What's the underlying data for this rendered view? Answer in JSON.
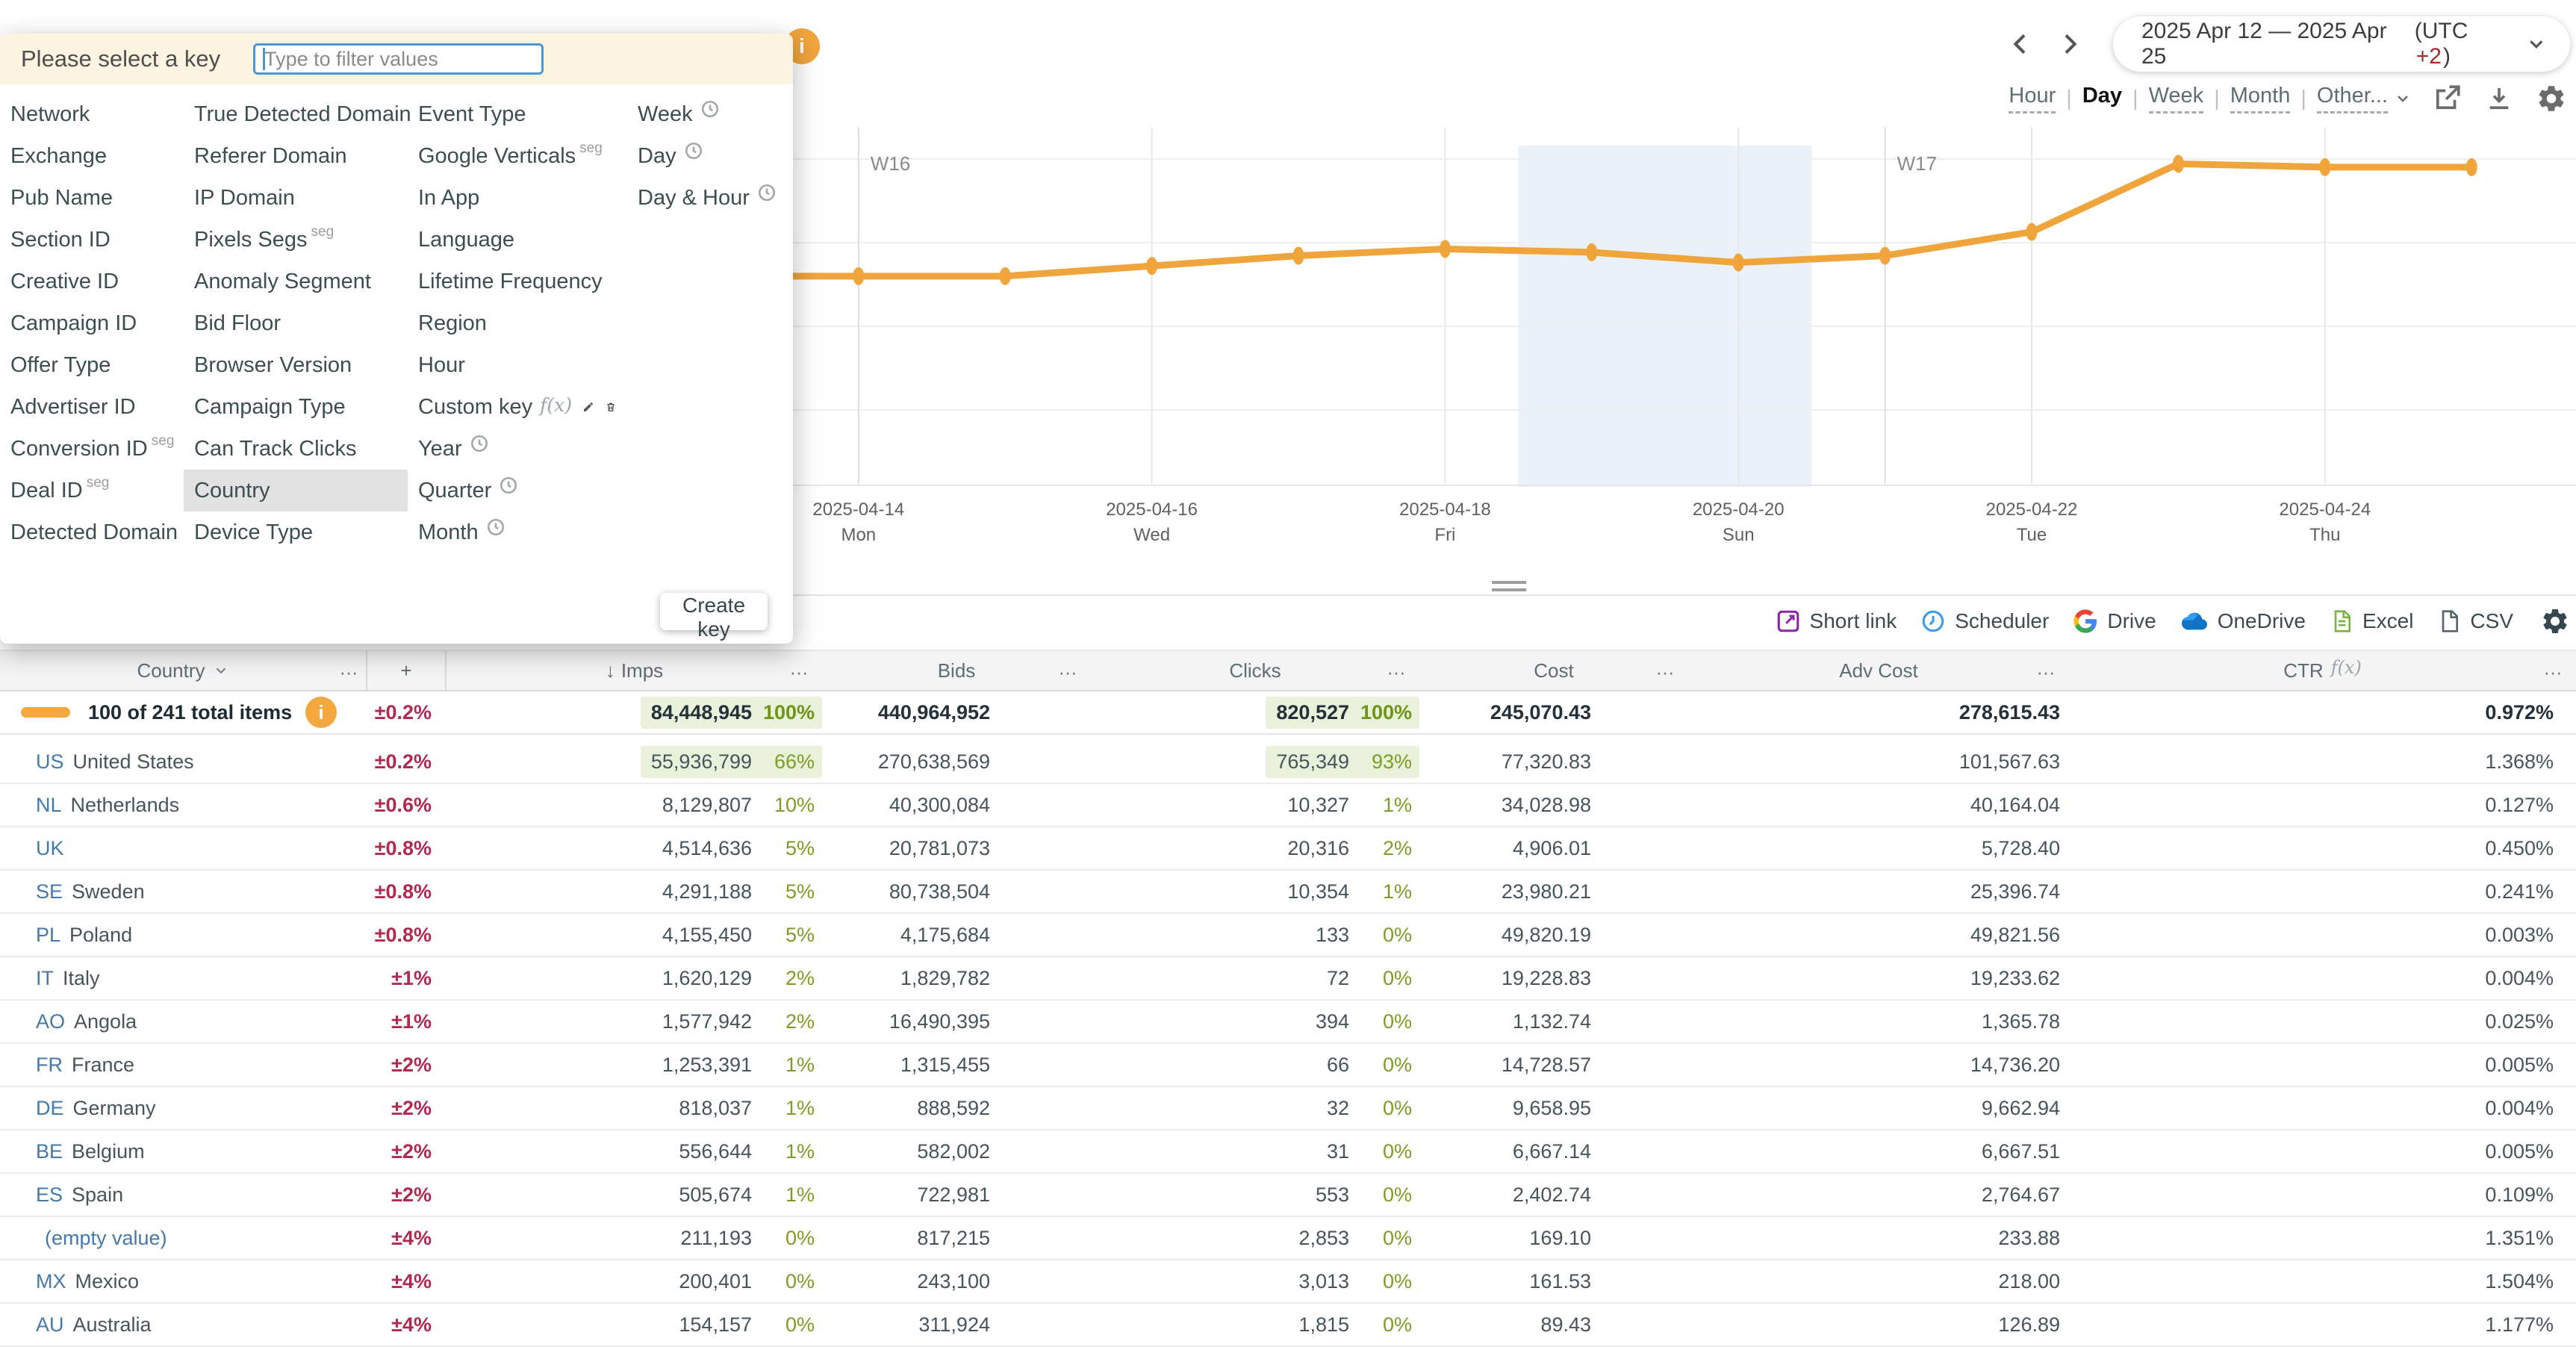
{
  "key_panel": {
    "title": "Please select a key",
    "filter_placeholder": "Type to filter values",
    "create_label": "Create key",
    "columns": [
      {
        "items": [
          {
            "label": "Network"
          },
          {
            "label": "Exchange"
          },
          {
            "label": "Pub Name"
          },
          {
            "label": "Section ID"
          },
          {
            "label": "Creative ID"
          },
          {
            "label": "Campaign ID"
          },
          {
            "label": "Offer Type"
          },
          {
            "label": "Advertiser ID"
          },
          {
            "label": "Conversion ID",
            "sup": "seg"
          },
          {
            "label": "Deal ID",
            "sup": "seg"
          },
          {
            "label": "Detected Domain"
          }
        ]
      },
      {
        "items": [
          {
            "label": "True Detected Domain"
          },
          {
            "label": "Referer Domain"
          },
          {
            "label": "IP Domain"
          },
          {
            "label": "Pixels Segs",
            "sup": "seg"
          },
          {
            "label": "Anomaly Segment"
          },
          {
            "label": "Bid Floor"
          },
          {
            "label": "Browser Version"
          },
          {
            "label": "Campaign Type"
          },
          {
            "label": "Can Track Clicks"
          },
          {
            "label": "Country",
            "selected": true
          },
          {
            "label": "Device Type"
          }
        ]
      },
      {
        "items": [
          {
            "label": "Event Type"
          },
          {
            "label": "Google Verticals",
            "sup": "seg"
          },
          {
            "label": "In App"
          },
          {
            "label": "Language"
          },
          {
            "label": "Lifetime Frequency"
          },
          {
            "label": "Region"
          },
          {
            "label": "Hour"
          },
          {
            "label": "Custom key",
            "fx": true,
            "actions": [
              "edit",
              "delete"
            ]
          },
          {
            "label": "Year",
            "clock": true
          },
          {
            "label": "Quarter",
            "clock": true
          },
          {
            "label": "Month",
            "clock": true
          }
        ]
      },
      {
        "items": [
          {
            "label": "Week",
            "clock": true
          },
          {
            "label": "Day",
            "clock": true
          },
          {
            "label": "Day & Hour",
            "clock": true
          }
        ]
      }
    ]
  },
  "topbar": {
    "date_range": "2025 Apr 12 — 2025 Apr 25",
    "utc_prefix": "(UTC",
    "utc_offset": "+2",
    "utc_suffix": ")",
    "granularity": {
      "options": [
        "Hour",
        "Day",
        "Week",
        "Month",
        "Other..."
      ],
      "active": "Day"
    },
    "icons": [
      "open-in-new",
      "download",
      "settings"
    ]
  },
  "export_bar": {
    "items": [
      {
        "label": "Short link",
        "icon": "short-link"
      },
      {
        "label": "Scheduler",
        "icon": "scheduler-clock"
      },
      {
        "label": "Drive",
        "icon": "google-drive"
      },
      {
        "label": "OneDrive",
        "icon": "onedrive-cloud"
      },
      {
        "label": "Excel",
        "icon": "excel-file"
      },
      {
        "label": "CSV",
        "icon": "csv-file"
      }
    ],
    "settings_icon": "gear"
  },
  "chart_data": {
    "type": "line",
    "title": "",
    "series": [
      {
        "name": "Imps",
        "values_relative": [
          61,
          61,
          61,
          61,
          64,
          67,
          69,
          68,
          65,
          67,
          74,
          94,
          93,
          93
        ]
      }
    ],
    "x": [
      "2025-04-12",
      "2025-04-13",
      "2025-04-14",
      "2025-04-15",
      "2025-04-16",
      "2025-04-17",
      "2025-04-18",
      "2025-04-19",
      "2025-04-20",
      "2025-04-21",
      "2025-04-22",
      "2025-04-23",
      "2025-04-24",
      "2025-04-25"
    ],
    "ticks": [
      {
        "date": "2025-04-14",
        "dow": "Mon"
      },
      {
        "date": "2025-04-16",
        "dow": "Wed"
      },
      {
        "date": "2025-04-18",
        "dow": "Fri"
      },
      {
        "date": "2025-04-20",
        "dow": "Sun"
      },
      {
        "date": "2025-04-22",
        "dow": "Tue"
      },
      {
        "date": "2025-04-24",
        "dow": "Thu"
      }
    ],
    "week_markers": [
      {
        "label": "W16",
        "date": "2025-04-14"
      },
      {
        "label": "W17",
        "date": "2025-04-21"
      }
    ],
    "weekend_band": [
      "2025-04-19",
      "2025-04-20"
    ],
    "line_color": "#f0a43c",
    "band_color": "#eaf1f8",
    "grid": true,
    "ylim": [
      0,
      100
    ],
    "xlabel": "",
    "ylabel": ""
  },
  "table": {
    "headers": {
      "country": "Country",
      "plus": "+",
      "imps": "Imps",
      "bids": "Bids",
      "clicks": "Clicks",
      "cost": "Cost",
      "adv_cost": "Adv Cost",
      "ctr": "CTR",
      "ctr_fx": "f(x)",
      "sort_arrow": "↓",
      "menu": "…"
    },
    "totals": {
      "label": "100 of 241 total items",
      "pm": "±0.2%",
      "imps": "84,448,945",
      "imps_pct": "100%",
      "bids": "440,964,952",
      "clicks": "820,527",
      "clicks_pct": "100%",
      "cost": "245,070.43",
      "adv_cost": "278,615.43",
      "ctr": "0.972%"
    },
    "rows": [
      {
        "code": "US",
        "name": "United States",
        "pm": "±0.2%",
        "imps": "55,936,799",
        "imps_pct": "66%",
        "hl_imps": true,
        "bids": "270,638,569",
        "clicks": "765,349",
        "clicks_pct": "93%",
        "hl_clicks": true,
        "cost": "77,320.83",
        "adv_cost": "101,567.63",
        "ctr": "1.368%"
      },
      {
        "code": "NL",
        "name": "Netherlands",
        "pm": "±0.6%",
        "imps": "8,129,807",
        "imps_pct": "10%",
        "bids": "40,300,084",
        "clicks": "10,327",
        "clicks_pct": "1%",
        "cost": "34,028.98",
        "adv_cost": "40,164.04",
        "ctr": "0.127%"
      },
      {
        "code": "UK",
        "name": "",
        "pm": "±0.8%",
        "imps": "4,514,636",
        "imps_pct": "5%",
        "bids": "20,781,073",
        "clicks": "20,316",
        "clicks_pct": "2%",
        "cost": "4,906.01",
        "adv_cost": "5,728.40",
        "ctr": "0.450%"
      },
      {
        "code": "SE",
        "name": "Sweden",
        "pm": "±0.8%",
        "imps": "4,291,188",
        "imps_pct": "5%",
        "bids": "80,738,504",
        "clicks": "10,354",
        "clicks_pct": "1%",
        "cost": "23,980.21",
        "adv_cost": "25,396.74",
        "ctr": "0.241%"
      },
      {
        "code": "PL",
        "name": "Poland",
        "pm": "±0.8%",
        "imps": "4,155,450",
        "imps_pct": "5%",
        "bids": "4,175,684",
        "clicks": "133",
        "clicks_pct": "0%",
        "cost": "49,820.19",
        "adv_cost": "49,821.56",
        "ctr": "0.003%"
      },
      {
        "code": "IT",
        "name": "Italy",
        "pm": "±1%",
        "imps": "1,620,129",
        "imps_pct": "2%",
        "bids": "1,829,782",
        "clicks": "72",
        "clicks_pct": "0%",
        "cost": "19,228.83",
        "adv_cost": "19,233.62",
        "ctr": "0.004%"
      },
      {
        "code": "AO",
        "name": "Angola",
        "pm": "±1%",
        "imps": "1,577,942",
        "imps_pct": "2%",
        "bids": "16,490,395",
        "clicks": "394",
        "clicks_pct": "0%",
        "cost": "1,132.74",
        "adv_cost": "1,365.78",
        "ctr": "0.025%"
      },
      {
        "code": "FR",
        "name": "France",
        "pm": "±2%",
        "imps": "1,253,391",
        "imps_pct": "1%",
        "bids": "1,315,455",
        "clicks": "66",
        "clicks_pct": "0%",
        "cost": "14,728.57",
        "adv_cost": "14,736.20",
        "ctr": "0.005%"
      },
      {
        "code": "DE",
        "name": "Germany",
        "pm": "±2%",
        "imps": "818,037",
        "imps_pct": "1%",
        "bids": "888,592",
        "clicks": "32",
        "clicks_pct": "0%",
        "cost": "9,658.95",
        "adv_cost": "9,662.94",
        "ctr": "0.004%"
      },
      {
        "code": "BE",
        "name": "Belgium",
        "pm": "±2%",
        "imps": "556,644",
        "imps_pct": "1%",
        "bids": "582,002",
        "clicks": "31",
        "clicks_pct": "0%",
        "cost": "6,667.14",
        "adv_cost": "6,667.51",
        "ctr": "0.005%"
      },
      {
        "code": "ES",
        "name": "Spain",
        "pm": "±2%",
        "imps": "505,674",
        "imps_pct": "1%",
        "bids": "722,981",
        "clicks": "553",
        "clicks_pct": "0%",
        "cost": "2,402.74",
        "adv_cost": "2,764.67",
        "ctr": "0.109%"
      },
      {
        "code": "",
        "name": "(empty value)",
        "empty": true,
        "pm": "±4%",
        "imps": "211,193",
        "imps_pct": "0%",
        "bids": "817,215",
        "clicks": "2,853",
        "clicks_pct": "0%",
        "cost": "169.10",
        "adv_cost": "233.88",
        "ctr": "1.351%"
      },
      {
        "code": "MX",
        "name": "Mexico",
        "pm": "±4%",
        "imps": "200,401",
        "imps_pct": "0%",
        "bids": "243,100",
        "clicks": "3,013",
        "clicks_pct": "0%",
        "cost": "161.53",
        "adv_cost": "218.00",
        "ctr": "1.504%"
      },
      {
        "code": "AU",
        "name": "Australia",
        "pm": "±4%",
        "imps": "154,157",
        "imps_pct": "0%",
        "bids": "311,924",
        "clicks": "1,815",
        "clicks_pct": "0%",
        "cost": "89.43",
        "adv_cost": "126.89",
        "ctr": "1.177%"
      }
    ]
  }
}
